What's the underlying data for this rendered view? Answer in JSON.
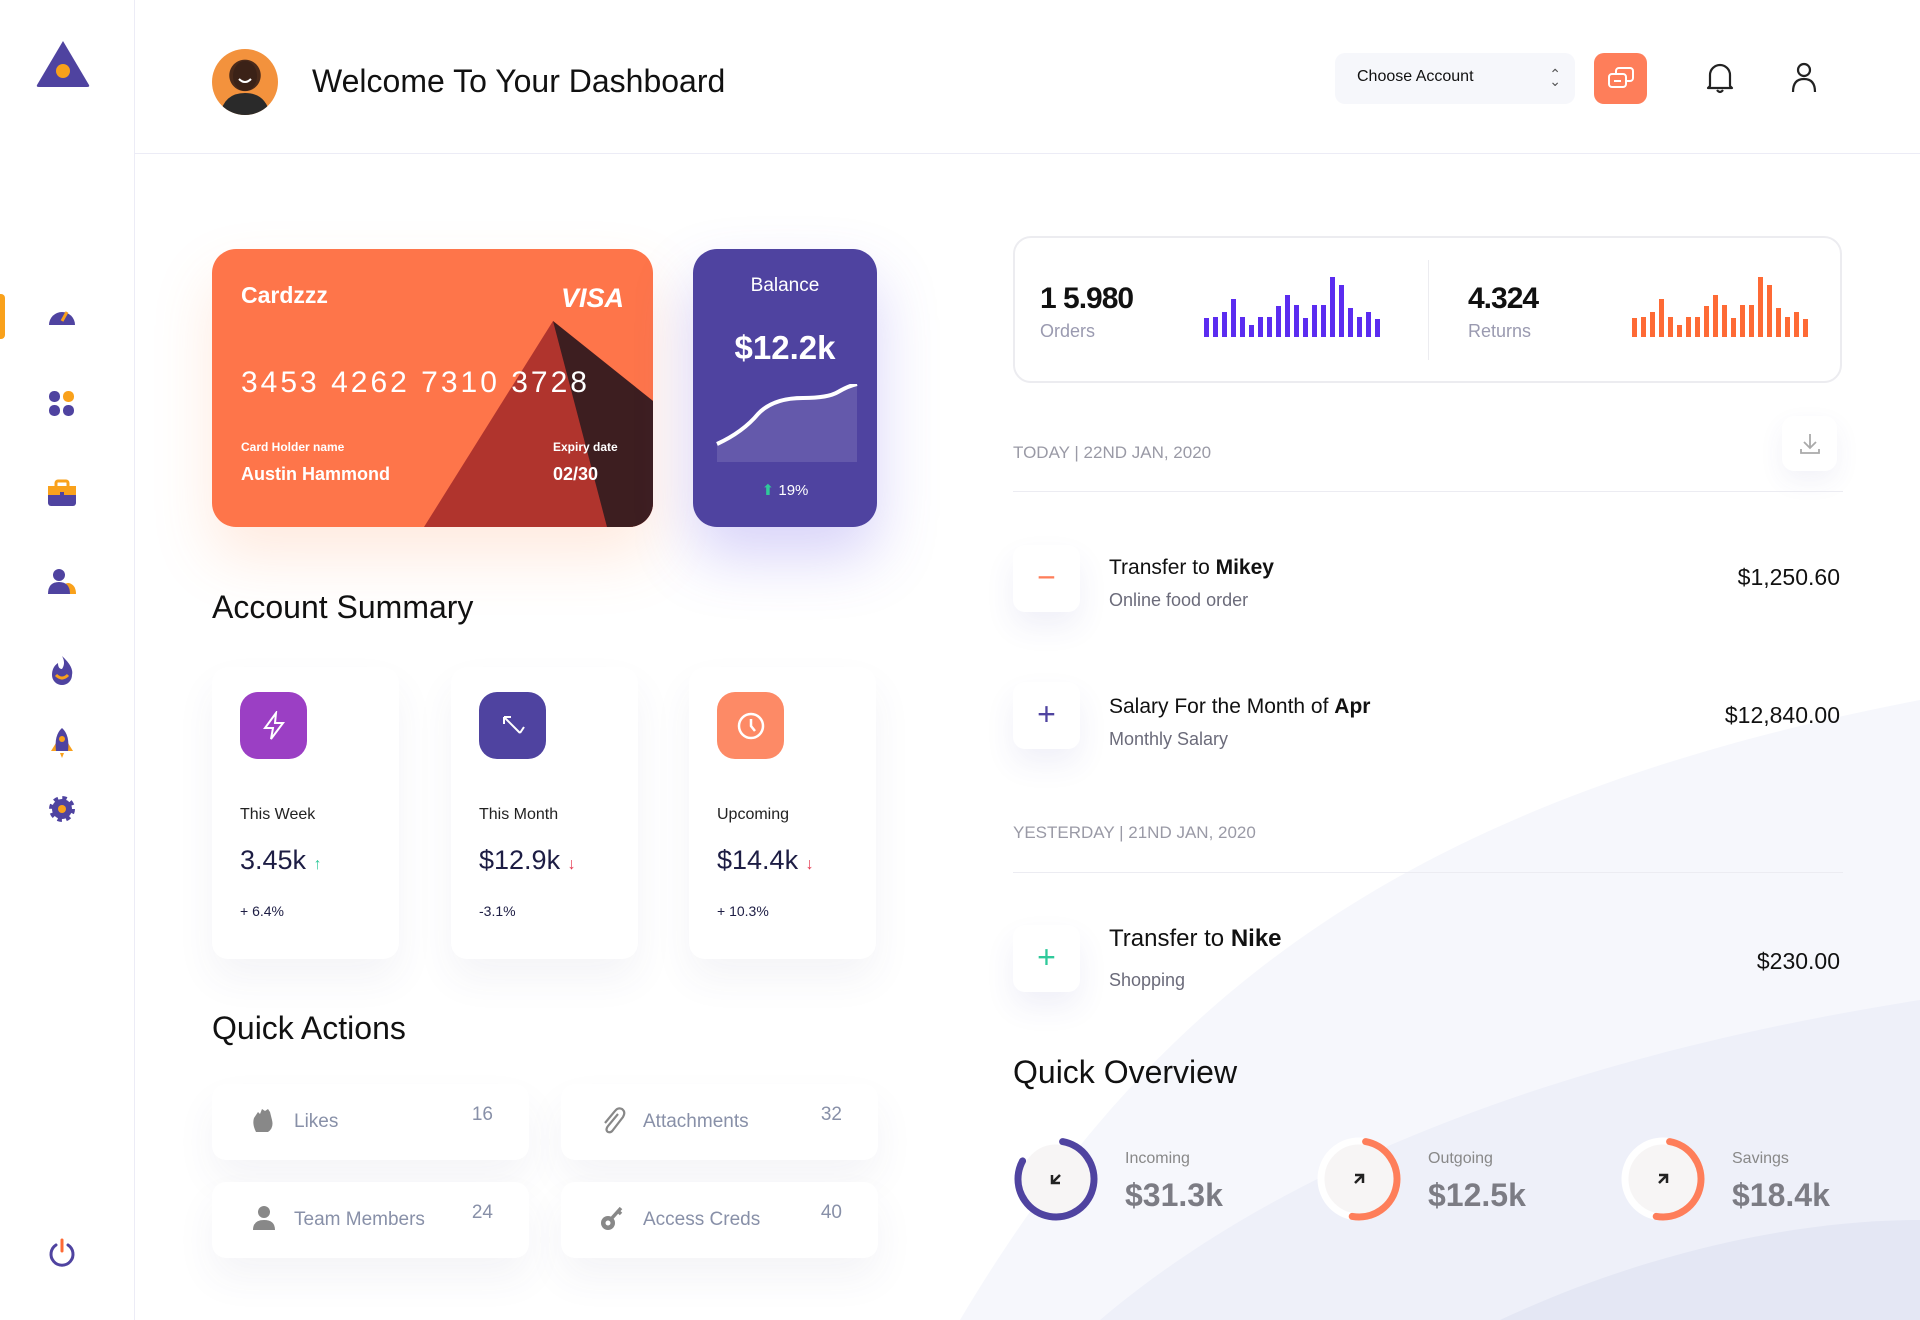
{
  "header": {
    "title": "Welcome To Your Dashboard",
    "account_select": "Choose Account"
  },
  "sidebar": {
    "items": [
      "dashboard-icon",
      "apps-icon",
      "briefcase-icon",
      "users-icon",
      "fire-icon",
      "rocket-icon",
      "settings-icon"
    ],
    "active": "dashboard"
  },
  "card": {
    "name": "Cardzzz",
    "brand": "VISA",
    "number": "3453 4262 7310 3728",
    "holder_label": "Card Holder name",
    "holder": "Austin Hammond",
    "expiry_label": "Expiry date",
    "expiry": "02/30"
  },
  "balance": {
    "label": "Balance",
    "value": "$12.2k",
    "change": "19%"
  },
  "account_summary": {
    "title": "Account Summary",
    "cards": [
      {
        "label": "This Week",
        "value": "3.45k",
        "trend": "up",
        "pct": "+ 6.4%",
        "color": "#9b3fc4"
      },
      {
        "label": "This Month",
        "value": "$12.9k",
        "trend": "down",
        "pct": "-3.1%",
        "color": "#4f43a0"
      },
      {
        "label": "Upcoming",
        "value": "$14.4k",
        "trend": "down",
        "pct": "+ 10.3%",
        "color": "#fd8a66"
      }
    ]
  },
  "quick_actions": {
    "title": "Quick Actions",
    "items": [
      {
        "label": "Likes",
        "count": "16"
      },
      {
        "label": "Attachments",
        "count": "32"
      },
      {
        "label": "Team Members",
        "count": "24"
      },
      {
        "label": "Access Creds",
        "count": "40"
      }
    ]
  },
  "stats": {
    "orders": {
      "value": "1 5.980",
      "label": "Orders",
      "color": "#5b2cf0",
      "bars": [
        53,
        55,
        68,
        103,
        55,
        33,
        55,
        55,
        85,
        113,
        88,
        51,
        88,
        88,
        163,
        141,
        78,
        55,
        68,
        50
      ]
    },
    "returns": {
      "value": "4.324",
      "label": "Returns",
      "color": "#fe6a35",
      "bars": [
        53,
        55,
        68,
        103,
        55,
        33,
        55,
        55,
        85,
        113,
        88,
        51,
        88,
        88,
        163,
        141,
        78,
        55,
        68,
        50
      ]
    }
  },
  "transactions": {
    "today_label": "TODAY | 22ND JAN, 2020",
    "yesterday_label": "YESTERDAY | 21ND JAN, 2020",
    "items": [
      {
        "prefix": "Transfer to ",
        "bold": "Mikey",
        "sub": "Online food order",
        "amount": "$1,250.60",
        "sign": "−",
        "color": "#fe7e5a"
      },
      {
        "prefix": "Salary For the Month of ",
        "bold": "Apr",
        "sub": "Monthly Salary",
        "amount": "$12,840.00",
        "sign": "+",
        "color": "#4f43a0"
      },
      {
        "prefix": "Transfer to ",
        "bold": "Nike",
        "sub": "Shopping",
        "amount": "$230.00",
        "sign": "+",
        "color": "#2fc99a"
      }
    ]
  },
  "quick_overview": {
    "title": "Quick Overview",
    "items": [
      {
        "label": "Incoming",
        "value": "$31.3k",
        "progress": 0.8,
        "color": "#4f43a0"
      },
      {
        "label": "Outgoing",
        "value": "$12.5k",
        "progress": 0.5,
        "color": "#fe7e5a"
      },
      {
        "label": "Savings",
        "value": "$18.4k",
        "progress": 0.5,
        "color": "#fe7e5a"
      }
    ]
  }
}
